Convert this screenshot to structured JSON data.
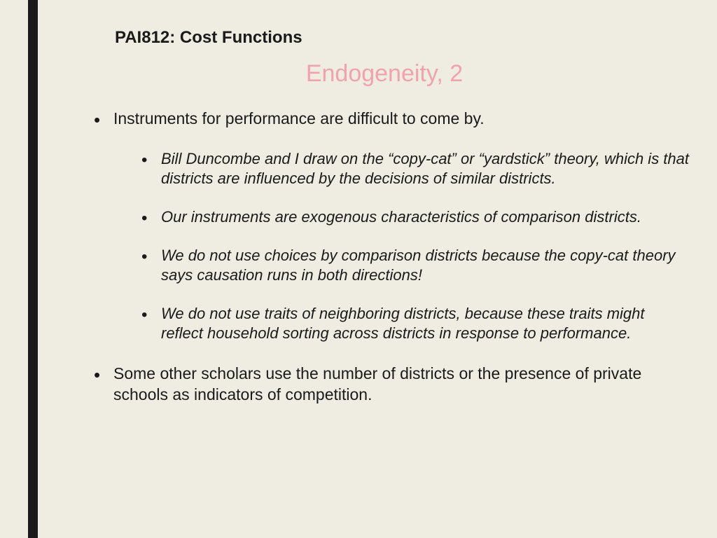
{
  "course_header": "PAI812: Cost Functions",
  "slide_title": "Endogeneity, 2",
  "colors": {
    "background": "#efede1",
    "accent_bar": "#1a1a1a",
    "title": "#f2a2ac",
    "text": "#1a1a1a"
  },
  "typography": {
    "header_fontsize": 24,
    "title_fontsize": 34,
    "bullet_fontsize": 23,
    "sub_bullet_fontsize": 22,
    "font_family": "Arial"
  },
  "bullets": [
    {
      "text": "Instruments for performance are difficult to come by.",
      "sub": [
        "Bill Duncombe and I draw on the “copy-cat” or “yardstick” theory, which is that districts are influenced by the decisions of similar districts.",
        "Our instruments are exogenous characteristics of comparison districts.",
        "We do not use choices by comparison districts because the copy-cat theory says causation runs in both directions!",
        "We do not use traits of neighboring districts, because these traits might reflect household sorting across districts in response to performance."
      ]
    },
    {
      "text": "Some other scholars use the number of districts or the presence of private schools as indicators of competition.",
      "sub": []
    }
  ]
}
